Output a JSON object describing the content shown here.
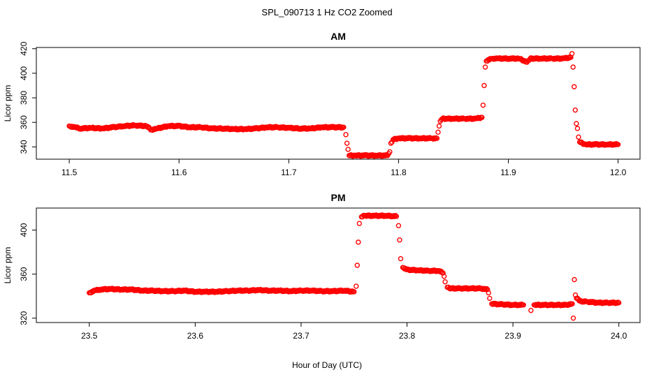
{
  "figure": {
    "title": "SPL_090713  1 Hz CO2 Zoomed",
    "xlabel": "Hour of Day (UTC)",
    "marker_color": "#ff0000"
  },
  "chart_data": [
    {
      "type": "scatter",
      "title": "AM",
      "xlabel": "",
      "ylabel": "Licor ppm",
      "xlim": [
        11.47,
        12.02
      ],
      "ylim": [
        330,
        421
      ],
      "x_ticks": [
        "11.5",
        "11.6",
        "11.7",
        "11.8",
        "11.9",
        "12.0"
      ],
      "y_ticks": [
        "340",
        "360",
        "380",
        "400",
        "420"
      ],
      "grid": false,
      "legend": "none",
      "series": [
        {
          "color": "#ff0000",
          "marker": "open-circle",
          "points": [
            [
              11.5,
              357
            ],
            [
              11.505,
              356
            ],
            [
              11.51,
              355
            ],
            [
              11.52,
              355.5
            ],
            [
              11.53,
              355
            ],
            [
              11.54,
              356
            ],
            [
              11.55,
              357
            ],
            [
              11.56,
              357.5
            ],
            [
              11.57,
              357
            ],
            [
              11.575,
              354
            ],
            [
              11.58,
              355
            ],
            [
              11.59,
              357
            ],
            [
              11.6,
              357
            ],
            [
              11.61,
              356
            ],
            [
              11.62,
              356
            ],
            [
              11.63,
              355
            ],
            [
              11.64,
              355
            ],
            [
              11.65,
              354.5
            ],
            [
              11.66,
              354.5
            ],
            [
              11.67,
              355
            ],
            [
              11.68,
              356
            ],
            [
              11.69,
              356
            ],
            [
              11.7,
              355.5
            ],
            [
              11.71,
              355
            ],
            [
              11.72,
              355
            ],
            [
              11.73,
              356
            ],
            [
              11.74,
              356
            ],
            [
              11.75,
              356
            ],
            [
              11.752,
              350
            ],
            [
              11.753,
              343
            ],
            [
              11.754,
              338
            ],
            [
              11.755,
              333
            ],
            [
              11.76,
              333
            ],
            [
              11.77,
              333
            ],
            [
              11.78,
              333
            ],
            [
              11.79,
              333
            ],
            [
              11.792,
              336
            ],
            [
              11.793,
              343
            ],
            [
              11.795,
              346
            ],
            [
              11.8,
              347
            ],
            [
              11.81,
              347
            ],
            [
              11.82,
              347
            ],
            [
              11.83,
              347
            ],
            [
              11.835,
              347
            ],
            [
              11.836,
              352
            ],
            [
              11.837,
              357
            ],
            [
              11.838,
              361
            ],
            [
              11.84,
              363
            ],
            [
              11.85,
              363
            ],
            [
              11.86,
              363
            ],
            [
              11.87,
              363
            ],
            [
              11.876,
              364
            ],
            [
              11.877,
              374
            ],
            [
              11.878,
              390
            ],
            [
              11.879,
              405
            ],
            [
              11.88,
              410
            ],
            [
              11.885,
              412
            ],
            [
              11.89,
              412
            ],
            [
              11.9,
              412
            ],
            [
              11.91,
              412
            ],
            [
              11.917,
              409
            ],
            [
              11.92,
              412
            ],
            [
              11.93,
              412
            ],
            [
              11.94,
              412
            ],
            [
              11.95,
              412
            ],
            [
              11.957,
              413
            ],
            [
              11.958,
              416
            ],
            [
              11.959,
              405
            ],
            [
              11.96,
              389
            ],
            [
              11.961,
              370
            ],
            [
              11.962,
              359
            ],
            [
              11.963,
              355
            ],
            [
              11.964,
              348
            ],
            [
              11.965,
              344
            ],
            [
              11.97,
              342
            ],
            [
              11.98,
              342
            ],
            [
              11.99,
              342
            ],
            [
              12.0,
              342
            ]
          ]
        }
      ]
    },
    {
      "type": "scatter",
      "title": "PM",
      "xlabel": "",
      "ylabel": "Licor ppm",
      "xlim": [
        23.45,
        24.02
      ],
      "ylim": [
        316,
        420
      ],
      "x_ticks": [
        "23.5",
        "23.6",
        "23.7",
        "23.8",
        "23.9",
        "24.0"
      ],
      "y_ticks": [
        "320",
        "360",
        "400"
      ],
      "grid": false,
      "legend": "none",
      "series": [
        {
          "color": "#ff0000",
          "marker": "open-circle",
          "points": [
            [
              23.5,
              343
            ],
            [
              23.505,
              345
            ],
            [
              23.51,
              346
            ],
            [
              23.52,
              346.5
            ],
            [
              23.53,
              346
            ],
            [
              23.54,
              346
            ],
            [
              23.55,
              345
            ],
            [
              23.56,
              345
            ],
            [
              23.57,
              344.5
            ],
            [
              23.58,
              344.5
            ],
            [
              23.59,
              345
            ],
            [
              23.6,
              344
            ],
            [
              23.61,
              344
            ],
            [
              23.62,
              344
            ],
            [
              23.63,
              344.5
            ],
            [
              23.64,
              345
            ],
            [
              23.65,
              345
            ],
            [
              23.66,
              345.5
            ],
            [
              23.67,
              345
            ],
            [
              23.68,
              345
            ],
            [
              23.69,
              344.5
            ],
            [
              23.7,
              345
            ],
            [
              23.71,
              345
            ],
            [
              23.72,
              344.5
            ],
            [
              23.73,
              344.5
            ],
            [
              23.74,
              345
            ],
            [
              23.75,
              344
            ],
            [
              23.752,
              349
            ],
            [
              23.753,
              368
            ],
            [
              23.754,
              389
            ],
            [
              23.755,
              406
            ],
            [
              23.757,
              412
            ],
            [
              23.76,
              413
            ],
            [
              23.77,
              413
            ],
            [
              23.78,
              413
            ],
            [
              23.79,
              412.5
            ],
            [
              23.792,
              404
            ],
            [
              23.793,
              391
            ],
            [
              23.794,
              374
            ],
            [
              23.796,
              366
            ],
            [
              23.8,
              364
            ],
            [
              23.81,
              363.5
            ],
            [
              23.82,
              363
            ],
            [
              23.83,
              363
            ],
            [
              23.834,
              361
            ],
            [
              23.835,
              358
            ],
            [
              23.836,
              353
            ],
            [
              23.838,
              348
            ],
            [
              23.84,
              347
            ],
            [
              23.85,
              347
            ],
            [
              23.86,
              347
            ],
            [
              23.87,
              347
            ],
            [
              23.876,
              346
            ],
            [
              23.877,
              343
            ],
            [
              23.878,
              338
            ],
            [
              23.88,
              333
            ],
            [
              23.89,
              332.5
            ],
            [
              23.9,
              332
            ],
            [
              23.91,
              332
            ],
            [
              23.917,
              327
            ],
            [
              23.92,
              332
            ],
            [
              23.93,
              332
            ],
            [
              23.94,
              332
            ],
            [
              23.95,
              332
            ],
            [
              23.956,
              333
            ],
            [
              23.957,
              320
            ],
            [
              23.958,
              355
            ],
            [
              23.959,
              341
            ],
            [
              23.96,
              338
            ],
            [
              23.965,
              335
            ],
            [
              23.97,
              335
            ],
            [
              23.98,
              334
            ],
            [
              23.99,
              334
            ],
            [
              24.0,
              334
            ]
          ]
        }
      ]
    }
  ]
}
